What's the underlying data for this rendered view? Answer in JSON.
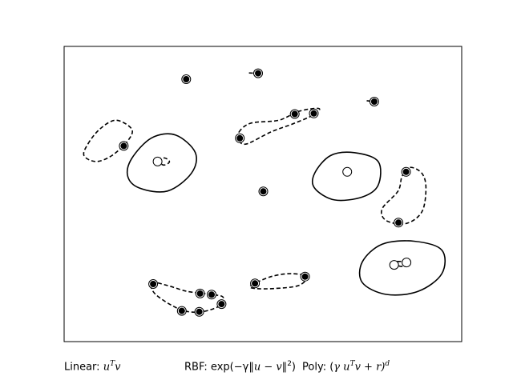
{
  "chart_data": {
    "type": "scatter",
    "title": "",
    "xlabel": "",
    "ylabel": "",
    "xlim": [
      0,
      100
    ],
    "ylim": [
      0,
      100
    ],
    "grid": false,
    "series": [
      {
        "marker": "filled-circle",
        "points": [
          [
            30.7,
            88.9
          ],
          [
            48.8,
            90.9
          ],
          [
            15.0,
            66.3
          ],
          [
            44.2,
            68.9
          ],
          [
            58.0,
            77.1
          ],
          [
            62.8,
            77.3
          ],
          [
            78.0,
            81.3
          ],
          [
            50.1,
            50.9
          ],
          [
            86.0,
            57.5
          ],
          [
            84.1,
            40.3
          ],
          [
            22.4,
            19.5
          ],
          [
            34.2,
            16.3
          ],
          [
            37.1,
            15.9
          ],
          [
            29.6,
            10.4
          ],
          [
            34.0,
            10.1
          ],
          [
            39.6,
            12.7
          ],
          [
            48.0,
            19.7
          ],
          [
            60.6,
            22.0
          ]
        ]
      },
      {
        "marker": "open-circle",
        "points": [
          [
            23.5,
            61.0
          ],
          [
            71.2,
            57.5
          ],
          [
            83.0,
            26.0
          ],
          [
            86.1,
            26.8
          ]
        ]
      }
    ],
    "contours": [
      {
        "style": "solid",
        "points": [
          [
            17,
            62
          ],
          [
            22,
            69
          ],
          [
            28,
            70
          ],
          [
            33,
            64
          ],
          [
            32,
            57
          ],
          [
            26,
            51
          ],
          [
            19,
            52
          ],
          [
            16,
            56
          ]
        ]
      },
      {
        "style": "solid",
        "points": [
          [
            63,
            57
          ],
          [
            67,
            63
          ],
          [
            73,
            64
          ],
          [
            79,
            61
          ],
          [
            79,
            53
          ],
          [
            75,
            49
          ],
          [
            68,
            48
          ],
          [
            63,
            52
          ]
        ]
      },
      {
        "style": "solid",
        "points": [
          [
            75,
            27
          ],
          [
            80,
            33
          ],
          [
            88,
            34
          ],
          [
            95,
            31
          ],
          [
            95,
            23
          ],
          [
            89,
            17
          ],
          [
            81,
            16
          ],
          [
            75,
            20
          ]
        ]
      },
      {
        "style": "dashed",
        "points": [
          [
            6,
            67
          ],
          [
            9,
            72
          ],
          [
            13,
            75
          ],
          [
            17,
            72
          ],
          [
            16,
            68
          ],
          [
            12,
            63
          ],
          [
            8,
            61
          ],
          [
            5,
            63
          ]
        ]
      },
      {
        "style": "dashed",
        "points": [
          [
            44,
            71
          ],
          [
            47,
            74
          ],
          [
            54,
            75
          ],
          [
            59,
            78
          ],
          [
            64,
            79
          ],
          [
            63,
            77
          ],
          [
            58,
            74
          ],
          [
            52,
            71
          ],
          [
            46,
            67
          ],
          [
            44,
            68
          ]
        ]
      },
      {
        "style": "dashed",
        "points": [
          [
            87,
            59
          ],
          [
            90,
            57
          ],
          [
            91,
            52
          ],
          [
            90,
            44
          ],
          [
            86,
            40
          ],
          [
            81,
            41
          ],
          [
            80,
            45
          ],
          [
            84,
            51
          ],
          [
            85,
            56
          ]
        ]
      },
      {
        "style": "dashed",
        "points": [
          [
            22,
            20
          ],
          [
            26,
            19
          ],
          [
            31,
            17
          ],
          [
            37,
            16
          ],
          [
            40,
            15
          ],
          [
            39,
            12
          ],
          [
            34,
            10
          ],
          [
            29,
            11
          ],
          [
            23,
            16
          ]
        ]
      },
      {
        "style": "dashed",
        "points": [
          [
            47,
            19
          ],
          [
            52,
            22
          ],
          [
            57,
            23
          ],
          [
            61,
            22
          ],
          [
            59,
            19
          ],
          [
            53,
            18
          ],
          [
            48,
            18
          ]
        ]
      },
      {
        "style": "dashed",
        "points": [
          [
            23.5,
            61.5
          ],
          [
            25.3,
            62.2
          ],
          [
            26.5,
            60.9
          ],
          [
            25.0,
            59.8
          ]
        ]
      },
      {
        "style": "dashed",
        "points": [
          [
            83,
            27
          ],
          [
            84.5,
            25.5
          ],
          [
            86,
            26
          ],
          [
            86.5,
            27
          ]
        ]
      }
    ],
    "tails": [
      [
        [
          46.5,
          91.0
        ],
        [
          48.8,
          90.9
        ],
        [
          49.3,
          89.6
        ]
      ],
      [
        [
          76.1,
          81.6
        ],
        [
          78.0,
          81.3
        ]
      ],
      [
        [
          31.3,
          88.2
        ],
        [
          30.7,
          88.9
        ]
      ],
      [
        [
          50.6,
          50.2
        ],
        [
          50.1,
          50.9
        ]
      ]
    ]
  },
  "captions": {
    "linear": {
      "label": "Linear: ",
      "formula": "u",
      "sup": "T",
      "after": "v"
    },
    "rbf": {
      "label": "RBF: exp(−γ",
      "formula": "‖u − v‖",
      "sup": "2",
      "after": ")"
    },
    "poly": {
      "label": "Poly: (",
      "formula": "γ u",
      "sup": "T",
      "after": "v + r)",
      "sup2": "d"
    }
  }
}
